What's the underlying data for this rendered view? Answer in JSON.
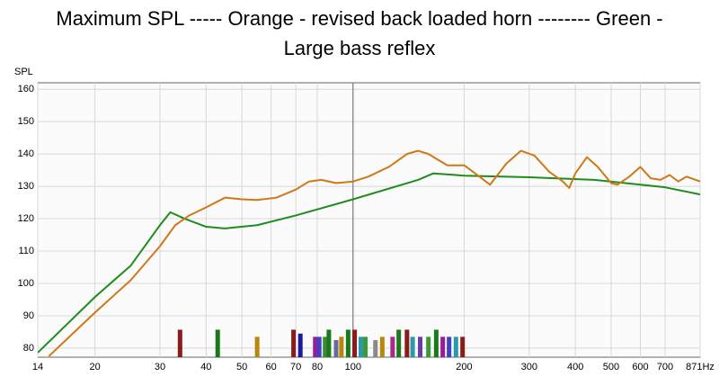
{
  "chart_data": {
    "type": "line",
    "title": [
      "Maximum SPL ----- Orange - revised back loaded horn -------- Green -",
      "Large bass reflex"
    ],
    "ylabel": "SPL",
    "xscale": "log",
    "grid": true,
    "xlim": [
      14,
      871
    ],
    "ylim": [
      77.2,
      162
    ],
    "xticks": [
      14,
      20,
      30,
      40,
      50,
      60,
      70,
      80,
      100,
      200,
      300,
      400,
      500,
      600,
      700,
      {
        "value": 871,
        "label": "871Hz"
      }
    ],
    "yticks": [
      80,
      90,
      100,
      110,
      120,
      130,
      140,
      150,
      160
    ],
    "ref_line_x": 100,
    "series": [
      {
        "color": "#1e8c1e",
        "x": [
          14,
          20,
          25,
          30,
          32,
          35,
          40,
          45,
          55,
          70,
          100,
          150,
          165,
          200,
          300,
          450,
          600,
          700,
          871
        ],
        "values": [
          78.6,
          95.8,
          105.5,
          118,
          122,
          120,
          117.5,
          117,
          118,
          121,
          126,
          132,
          134,
          133.3,
          132.8,
          132,
          130.5,
          129.7,
          127.5
        ]
      },
      {
        "color": "#d07818",
        "x": [
          15,
          20,
          25,
          30,
          33,
          36,
          40,
          45,
          50,
          55,
          62,
          70,
          76,
          82,
          90,
          100,
          110,
          125,
          140,
          150,
          160,
          180,
          200,
          220,
          235,
          260,
          285,
          310,
          340,
          370,
          385,
          400,
          430,
          460,
          500,
          520,
          560,
          600,
          640,
          680,
          720,
          760,
          800,
          871
        ],
        "values": [
          77.5,
          91,
          101,
          111.5,
          118,
          121,
          123.5,
          126.5,
          126,
          125.8,
          126.5,
          129,
          131.5,
          132,
          131,
          131.5,
          133,
          136,
          140,
          141,
          140,
          136.5,
          136.5,
          133,
          130.5,
          137,
          141,
          139.5,
          134.5,
          131.5,
          129.5,
          134,
          139,
          136,
          131,
          130.5,
          133,
          136,
          132.5,
          132,
          133.5,
          131.5,
          133,
          131.5
        ]
      }
    ],
    "markers": {
      "x": [
        34,
        43,
        55,
        69,
        72,
        79,
        81,
        84,
        86,
        90,
        93,
        97,
        101,
        105,
        108,
        115,
        120,
        128,
        133,
        140,
        145,
        152,
        160,
        168,
        175,
        182,
        190,
        198
      ],
      "values": [
        85.7,
        85.7,
        83.5,
        85.7,
        84.5,
        83.5,
        83.5,
        83.5,
        85.7,
        82.5,
        83.5,
        85.7,
        85.7,
        83.5,
        83.5,
        82.5,
        83.5,
        83.5,
        85.7,
        85.7,
        83.5,
        83.5,
        83.5,
        85.7,
        83.5,
        83.5,
        83.5,
        83.5
      ],
      "colors": [
        "#8b1a1a",
        "#1a7a1a",
        "#b8860b",
        "#8b1a1a",
        "#1a1a9b",
        "#9b1a9b",
        "#4040c0",
        "#3a8a3a",
        "#1a7a1a",
        "#6a6a9a",
        "#b8860b",
        "#1a7a1a",
        "#8b1a1a",
        "#2a9aaa",
        "#3a9a3a",
        "#8a8a8a",
        "#b8860b",
        "#aa2a8a",
        "#1a7a1a",
        "#8b1a1a",
        "#2a9aaa",
        "#6a3aaa",
        "#3a9a3a",
        "#1a7a1a",
        "#9b1a9b",
        "#4040c0",
        "#2a9aaa",
        "#8b1a1a"
      ]
    }
  }
}
